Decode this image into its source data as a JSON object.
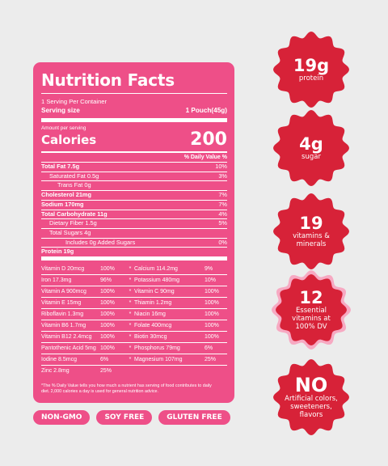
{
  "label": {
    "title": "Nutrition Facts",
    "servings_per_container": "1 Serving Per Container",
    "serving_size_label": "Serving size",
    "serving_size_value": "1 Pouch(45g)",
    "amount_per_serving": "Amount per serving",
    "calories_label": "Calories",
    "calories_value": "200",
    "dv_header": "% Daily Value %",
    "nutrients": [
      {
        "name": "Total Fat 7.5g",
        "dv": "10%"
      },
      {
        "name": "Saturated Fat 0.5g",
        "dv": "3%"
      },
      {
        "name": "Trans Fat 0g",
        "dv": ""
      },
      {
        "name": "Cholesterol 21mg",
        "dv": "7%"
      },
      {
        "name": "Sodium 170mg",
        "dv": "7%"
      },
      {
        "name": "Total Carbohydrate 11g",
        "dv": "4%"
      },
      {
        "name": "Dietary Fiber 1.5g",
        "dv": "5%"
      },
      {
        "name": "Total Sugars 4g",
        "dv": ""
      },
      {
        "name": "Includes 0g Added Sugars",
        "dv": "0%"
      },
      {
        "name": "Protein 19g",
        "dv": ""
      }
    ],
    "vitamins_left": [
      {
        "name": "Vitamin D 20mcg",
        "dv": "100%"
      },
      {
        "name": "Iron 17.3mg",
        "dv": "96%"
      },
      {
        "name": "Vitamin A 900mcg",
        "dv": "100%"
      },
      {
        "name": "Vitamin E 15mg",
        "dv": "100%"
      },
      {
        "name": "Riboflavin 1.3mg",
        "dv": "100%"
      },
      {
        "name": "Vitamin B6 1.7mg",
        "dv": "100%"
      },
      {
        "name": "Vitamin B12 2.4mcg",
        "dv": "100%"
      },
      {
        "name": "Pantothenic Acid 5mg",
        "dv": "100%"
      },
      {
        "name": "Iodine 8.5mcg",
        "dv": "6%"
      },
      {
        "name": "Zinc 2.8mg",
        "dv": "25%"
      }
    ],
    "vitamins_right": [
      {
        "name": "Calcium 114.2mg",
        "dv": "9%"
      },
      {
        "name": "Potassium 480mg",
        "dv": "10%"
      },
      {
        "name": "Vitamin C 90mg",
        "dv": "100%"
      },
      {
        "name": "Thiamin 1.2mg",
        "dv": "100%"
      },
      {
        "name": "Niacin 16mg",
        "dv": "100%"
      },
      {
        "name": "Folate 400mcg",
        "dv": "100%"
      },
      {
        "name": "Biotin 30mcg",
        "dv": "100%"
      },
      {
        "name": "Phosphorus 79mg",
        "dv": "6%"
      },
      {
        "name": "Magnesium 107mg",
        "dv": "25%"
      }
    ],
    "separator": "*",
    "footnote": "*The % Daily Value tells you how much a nutrient has serving of food contributes to daily diet. 2,000 calories a day is used for general nutrition advice."
  },
  "pills": [
    "NON-GMO",
    "SOY FREE",
    "GLUTEN FREE"
  ],
  "badges": [
    {
      "big": "19g",
      "small": "protein",
      "color": "#d72238"
    },
    {
      "big": "4g",
      "small": "sugar",
      "color": "#d72238"
    },
    {
      "big": "19",
      "small": "vitamins & minerals",
      "color": "#d72238"
    },
    {
      "big": "12",
      "small": "Essential vitamins at 100% DV",
      "color": "#d72238",
      "ring": "#f7a9c2"
    },
    {
      "big": "NO",
      "small": "Artificial colors, sweeteners, flavors",
      "color": "#d72238"
    }
  ],
  "colors": {
    "label_bg": "#ee4f88",
    "badge": "#d72238",
    "background": "#ececec"
  }
}
